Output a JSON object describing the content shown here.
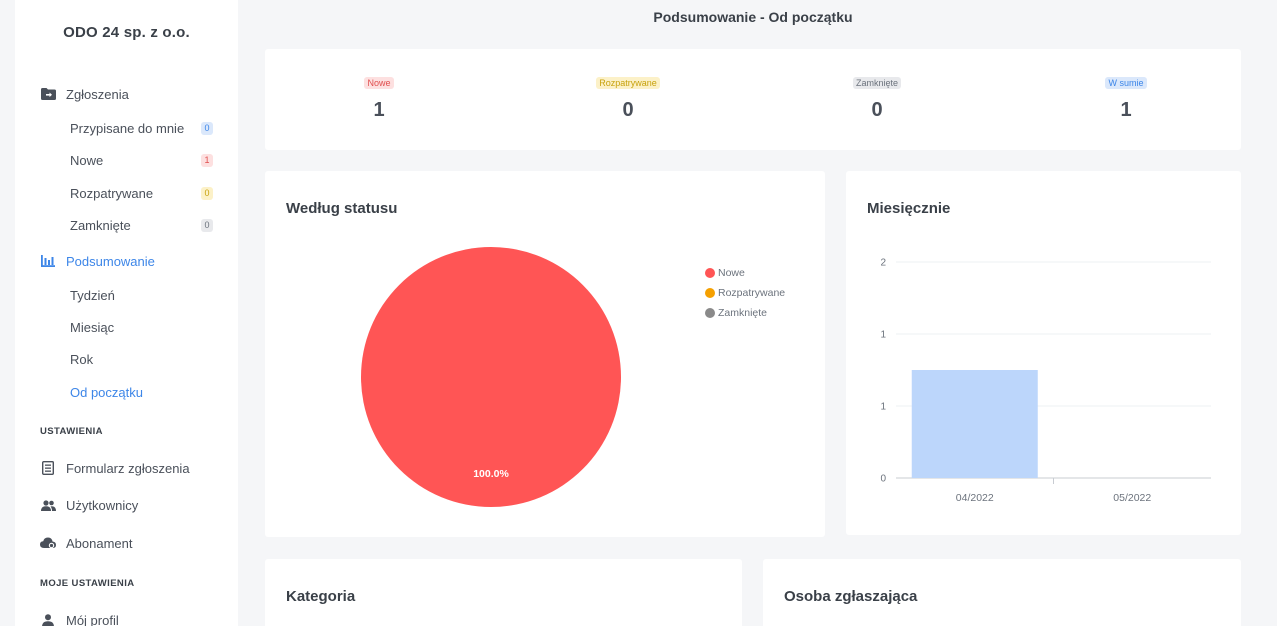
{
  "company": "ODO 24 sp. z o.o.",
  "sidebar": {
    "tickets": {
      "label": "Zgłoszenia",
      "items": [
        {
          "label": "Przypisane do mnie",
          "count": "0"
        },
        {
          "label": "Nowe",
          "count": "1"
        },
        {
          "label": "Rozpatrywane",
          "count": "0"
        },
        {
          "label": "Zamknięte",
          "count": "0"
        }
      ]
    },
    "summary": {
      "label": "Podsumowanie",
      "items": [
        {
          "label": "Tydzień"
        },
        {
          "label": "Miesiąc"
        },
        {
          "label": "Rok"
        },
        {
          "label": "Od początku"
        }
      ]
    },
    "settings_title": "USTAWIENIA",
    "settings": [
      {
        "label": "Formularz zgłoszenia",
        "icon": "form-icon"
      },
      {
        "label": "Użytkownicy",
        "icon": "users-icon"
      },
      {
        "label": "Abonament",
        "icon": "cloud-icon"
      }
    ],
    "my_settings_title": "MOJE USTAWIENIA",
    "my_settings": [
      {
        "label": "Mój profil",
        "icon": "user-icon"
      }
    ]
  },
  "page_title": "Podsumowanie - Od początku",
  "stats": [
    {
      "label": "Nowe",
      "value": "1"
    },
    {
      "label": "Rozpatrywane",
      "value": "0"
    },
    {
      "label": "Zamknięte",
      "value": "0"
    },
    {
      "label": "W sumie",
      "value": "1"
    }
  ],
  "colors": {
    "accent": "#3d86e8",
    "red": "#ff5555",
    "orange": "#f5a000",
    "gray": "#8a8a8a",
    "bar": "#bcd6fb"
  },
  "status_card_title": "Według statusu",
  "monthly_card_title": "Miesięcznie",
  "category_card_title": "Kategoria",
  "reporter_card_title": "Osoba zgłaszająca",
  "chart_data": [
    {
      "type": "pie",
      "categories": [
        "Nowe",
        "Rozpatrywane",
        "Zamknięte"
      ],
      "values": [
        1,
        0,
        0
      ],
      "colors": [
        "#ff5555",
        "#f5a000",
        "#8a8a8a"
      ],
      "data_label": "100.0%",
      "legend": "top-right"
    },
    {
      "type": "bar",
      "categories": [
        "04/2022",
        "05/2022"
      ],
      "values": [
        1,
        0
      ],
      "ylim": [
        0,
        2
      ],
      "y_tick_labels": [
        "0",
        "1",
        "1",
        "2"
      ],
      "grid": true
    }
  ]
}
